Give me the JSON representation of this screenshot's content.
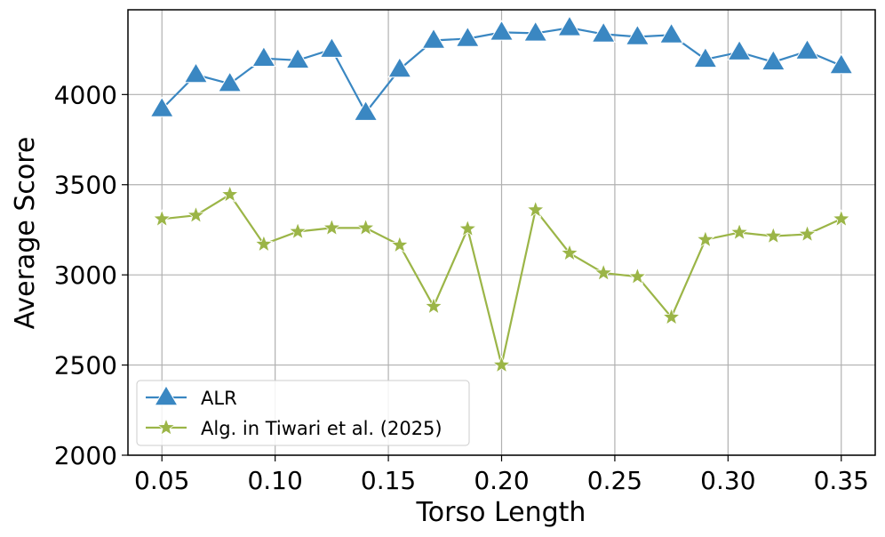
{
  "chart_data": {
    "type": "line",
    "title": "",
    "xlabel": "Torso Length",
    "ylabel": "Average Score",
    "xlim": [
      0.035,
      0.365
    ],
    "ylim": [
      2000,
      4470
    ],
    "xticks": [
      0.05,
      0.1,
      0.15,
      0.2,
      0.25,
      0.3,
      0.35
    ],
    "xtick_labels": [
      "0.05",
      "0.10",
      "0.15",
      "0.20",
      "0.25",
      "0.30",
      "0.35"
    ],
    "yticks": [
      2000,
      2500,
      3000,
      3500,
      4000
    ],
    "ytick_labels": [
      "2000",
      "2500",
      "3000",
      "3500",
      "4000"
    ],
    "grid": true,
    "legend_position": "lower-left",
    "x": [
      0.05,
      0.065,
      0.08,
      0.095,
      0.11,
      0.125,
      0.14,
      0.155,
      0.17,
      0.185,
      0.2,
      0.215,
      0.23,
      0.245,
      0.26,
      0.275,
      0.29,
      0.305,
      0.32,
      0.335,
      0.35
    ],
    "series": [
      {
        "name": "ALR",
        "marker": "triangle",
        "color": "#3a87c2",
        "values": [
          3920,
          4110,
          4060,
          4200,
          4190,
          4250,
          3900,
          4140,
          4300,
          4310,
          4345,
          4340,
          4370,
          4335,
          4320,
          4330,
          4195,
          4235,
          4180,
          4240,
          4160
        ]
      },
      {
        "name": "Alg. in Tiwari et al. (2025)",
        "marker": "star",
        "color": "#9bb547",
        "values": [
          3310,
          3330,
          3445,
          3170,
          3240,
          3260,
          3260,
          3165,
          2825,
          3255,
          2500,
          3360,
          3120,
          3010,
          2990,
          2765,
          3195,
          3235,
          3215,
          3225,
          3310
        ]
      }
    ]
  }
}
